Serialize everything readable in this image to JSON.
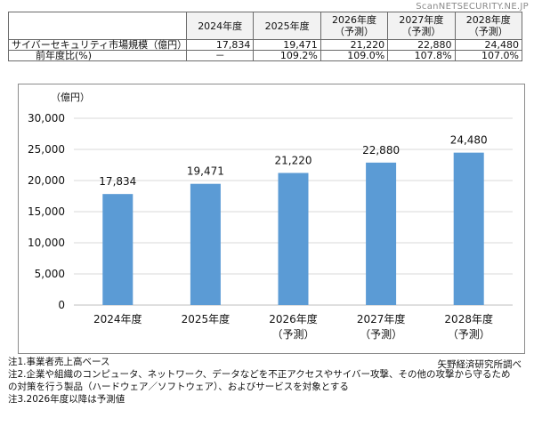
{
  "watermark": "ScanNETSECURITY.NE.JP",
  "table": {
    "headers": [
      {
        "line1": "2024年度",
        "line2": ""
      },
      {
        "line1": "2025年度",
        "line2": ""
      },
      {
        "line1": "2026年度",
        "line2": "（予測）"
      },
      {
        "line1": "2027年度",
        "line2": "（予測）"
      },
      {
        "line1": "2028年度",
        "line2": "（予測）"
      }
    ],
    "rows": [
      {
        "label": "サイバーセキュリティ市場規模（億円）",
        "values": [
          "17,834",
          "19,471",
          "21,220",
          "22,880",
          "24,480"
        ]
      },
      {
        "label": "前年度比(%)",
        "values": [
          "－",
          "109.2%",
          "109.0%",
          "107.8%",
          "107.0%"
        ]
      }
    ]
  },
  "chart_data": {
    "type": "bar",
    "unit_label": "（億円）",
    "categories": [
      {
        "line1": "2024年度",
        "line2": ""
      },
      {
        "line1": "2025年度",
        "line2": ""
      },
      {
        "line1": "2026年度",
        "line2": "（予測）"
      },
      {
        "line1": "2027年度",
        "line2": "（予測）"
      },
      {
        "line1": "2028年度",
        "line2": "（予測）"
      }
    ],
    "values": [
      17834,
      19471,
      21220,
      22880,
      24480
    ],
    "value_labels": [
      "17,834",
      "19,471",
      "21,220",
      "22,880",
      "24,480"
    ],
    "ylim": [
      0,
      30000
    ],
    "yticks": [
      0,
      5000,
      10000,
      15000,
      20000,
      25000,
      30000
    ],
    "ytick_labels": [
      "0",
      "5,000",
      "10,000",
      "15,000",
      "20,000",
      "25,000",
      "30,000"
    ],
    "grid": true,
    "bar_color": "#5b9bd5",
    "grid_color": "#d9d9d9"
  },
  "source": "矢野経済研究所調べ",
  "notes": [
    "注1.事業者売上高ベース",
    "注2.企業や組織のコンピュータ、ネットワーク、データなどを不正アクセスやサイバー攻撃、その他の攻撃から守るため",
    "の対策を行う製品（ハードウェア／ソフトウェア）、およびサービスを対象とする",
    "注3.2026年度以降は予測値"
  ]
}
